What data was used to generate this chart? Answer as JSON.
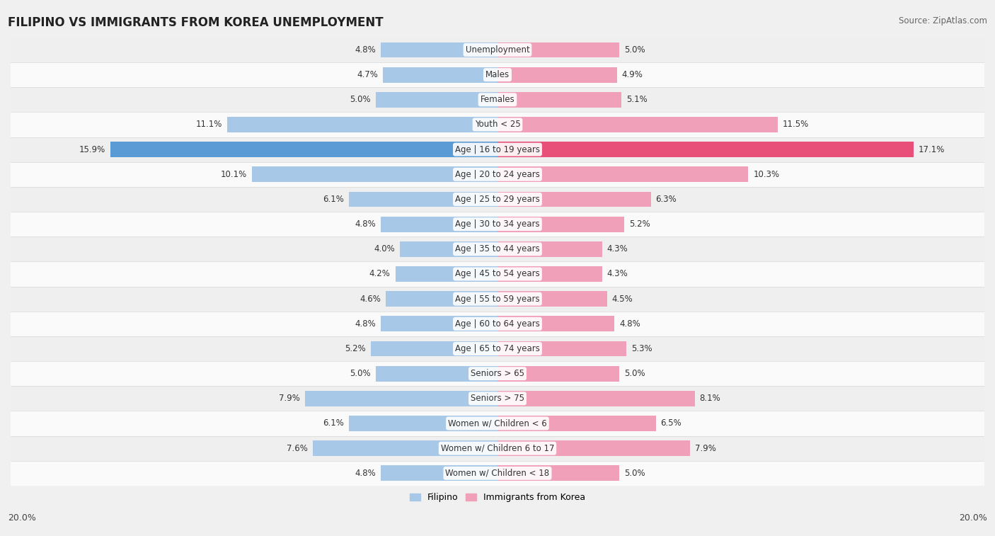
{
  "title": "FILIPINO VS IMMIGRANTS FROM KOREA UNEMPLOYMENT",
  "source": "Source: ZipAtlas.com",
  "categories": [
    "Unemployment",
    "Males",
    "Females",
    "Youth < 25",
    "Age | 16 to 19 years",
    "Age | 20 to 24 years",
    "Age | 25 to 29 years",
    "Age | 30 to 34 years",
    "Age | 35 to 44 years",
    "Age | 45 to 54 years",
    "Age | 55 to 59 years",
    "Age | 60 to 64 years",
    "Age | 65 to 74 years",
    "Seniors > 65",
    "Seniors > 75",
    "Women w/ Children < 6",
    "Women w/ Children 6 to 17",
    "Women w/ Children < 18"
  ],
  "filipino": [
    4.8,
    4.7,
    5.0,
    11.1,
    15.9,
    10.1,
    6.1,
    4.8,
    4.0,
    4.2,
    4.6,
    4.8,
    5.2,
    5.0,
    7.9,
    6.1,
    7.6,
    4.8
  ],
  "korea": [
    5.0,
    4.9,
    5.1,
    11.5,
    17.1,
    10.3,
    6.3,
    5.2,
    4.3,
    4.3,
    4.5,
    4.8,
    5.3,
    5.0,
    8.1,
    6.5,
    7.9,
    5.0
  ],
  "filipino_color": "#a8c8e8",
  "korea_color": "#f0a0b8",
  "highlight_filipino_color": "#5b9bd5",
  "highlight_korea_color": "#e8507a",
  "row_odd_color": "#efefef",
  "row_even_color": "#fafafa",
  "max_val": 20.0,
  "legend_filipino": "Filipino",
  "legend_korea": "Immigrants from Korea",
  "axis_label": "20.0%",
  "bar_height": 0.62,
  "title_fontsize": 12,
  "label_fontsize": 8.5,
  "value_fontsize": 8.5
}
